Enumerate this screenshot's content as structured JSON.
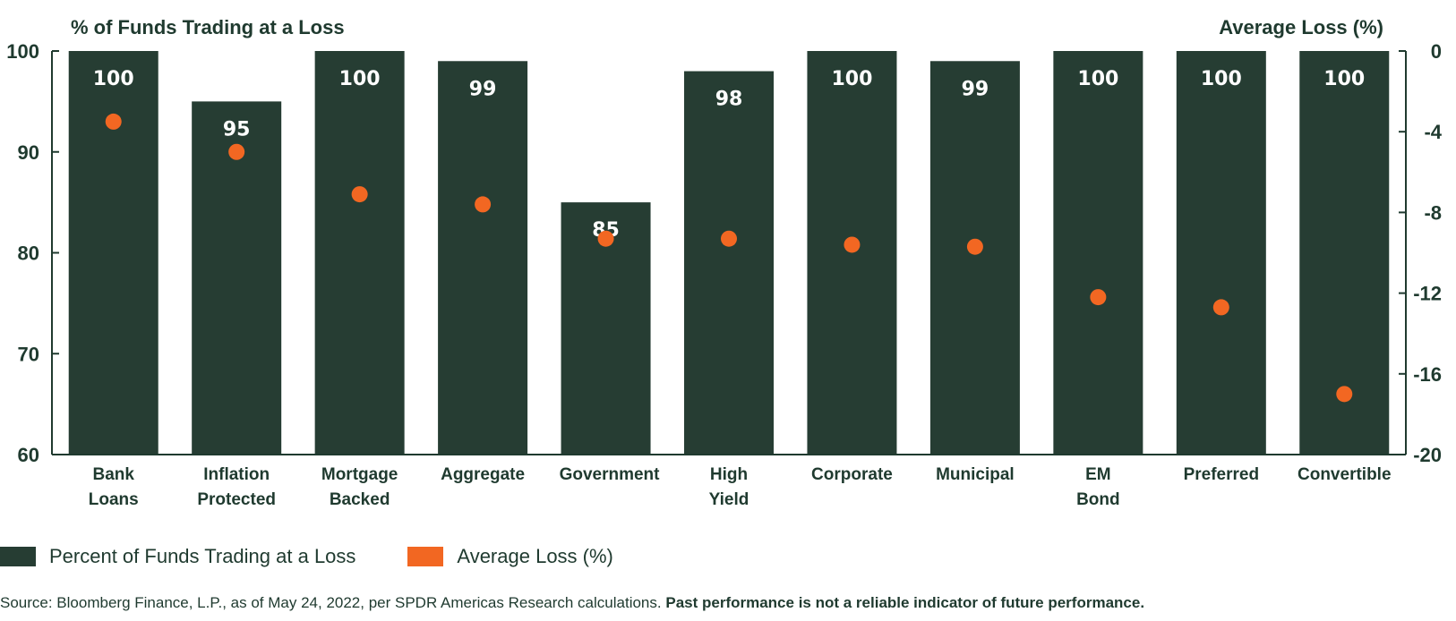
{
  "chart_data": {
    "type": "bar",
    "left_axis_title": "% of Funds Trading at a Loss",
    "right_axis_title": "Average Loss (%)",
    "categories": [
      [
        "Bank",
        "Loans"
      ],
      [
        "Inflation",
        "Protected"
      ],
      [
        "Mortgage",
        "Backed"
      ],
      [
        "Aggregate"
      ],
      [
        "Government"
      ],
      [
        "High",
        "Yield"
      ],
      [
        "Corporate"
      ],
      [
        "Municipal"
      ],
      [
        "EM",
        "Bond"
      ],
      [
        "Preferred"
      ],
      [
        "Convertible"
      ]
    ],
    "series": [
      {
        "name": "Percent of Funds Trading at a Loss",
        "type": "bar",
        "axis": "left",
        "color": "#263d33",
        "values": [
          100,
          95,
          100,
          99,
          85,
          98,
          100,
          99,
          100,
          100,
          100
        ],
        "labels": [
          "100",
          "95",
          "100",
          "99",
          "85",
          "98",
          "100",
          "99",
          "100",
          "100",
          "100"
        ]
      },
      {
        "name": "Average Loss (%)",
        "type": "scatter",
        "axis": "right",
        "color": "#f26722",
        "values": [
          -3.5,
          -5.0,
          -7.1,
          -7.6,
          -9.3,
          -9.3,
          -9.6,
          -9.7,
          -12.2,
          -12.7,
          -17.0
        ]
      }
    ],
    "left_axis": {
      "range": [
        60,
        100
      ],
      "ticks": [
        "100",
        "90",
        "80",
        "70",
        "60"
      ]
    },
    "right_axis": {
      "range": [
        -20,
        0
      ],
      "ticks": [
        "0",
        "-4",
        "-8",
        "-12",
        "-16",
        "-20"
      ]
    },
    "legend_position": "bottom-left",
    "grid": false
  },
  "legend": {
    "bar_label": "Percent of Funds Trading at a Loss",
    "dot_label": "Average Loss (%)"
  },
  "source": {
    "text": "Source: Bloomberg Finance, L.P., as of May 24, 2022, per SPDR Americas Research calculations.",
    "bold": "Past performance is not a reliable indicator of future performance."
  }
}
